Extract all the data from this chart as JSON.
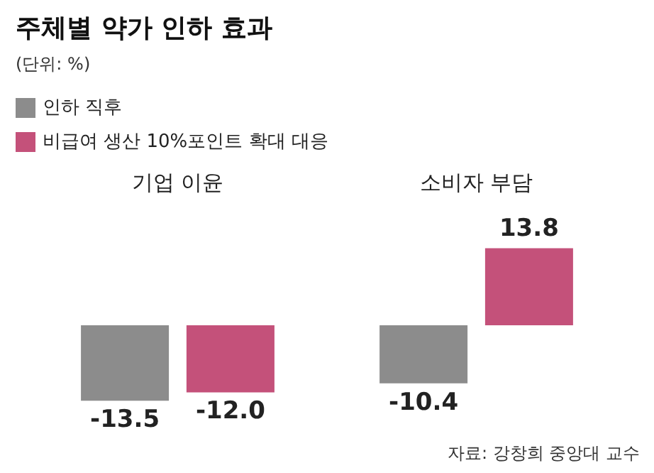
{
  "chart_data": {
    "type": "bar",
    "title": "주체별 약가 인하 효과",
    "subtitle": "(단위: %)",
    "categories": [
      "기업 이윤",
      "소비자 부담"
    ],
    "series": [
      {
        "name": "인하 직후",
        "color": "#8c8c8c",
        "values": [
          -13.5,
          -10.4
        ],
        "value_labels": [
          "-13.5",
          "-10.4"
        ]
      },
      {
        "name": "비급여 생산 10%포인트 확대 대응",
        "color": "#c4517a",
        "values": [
          -12.0,
          13.8
        ],
        "value_labels": [
          "-12.0",
          "13.8"
        ]
      }
    ],
    "legend": "top left",
    "annotations": [
      "자료: 강창희 중앙대 교수"
    ]
  }
}
